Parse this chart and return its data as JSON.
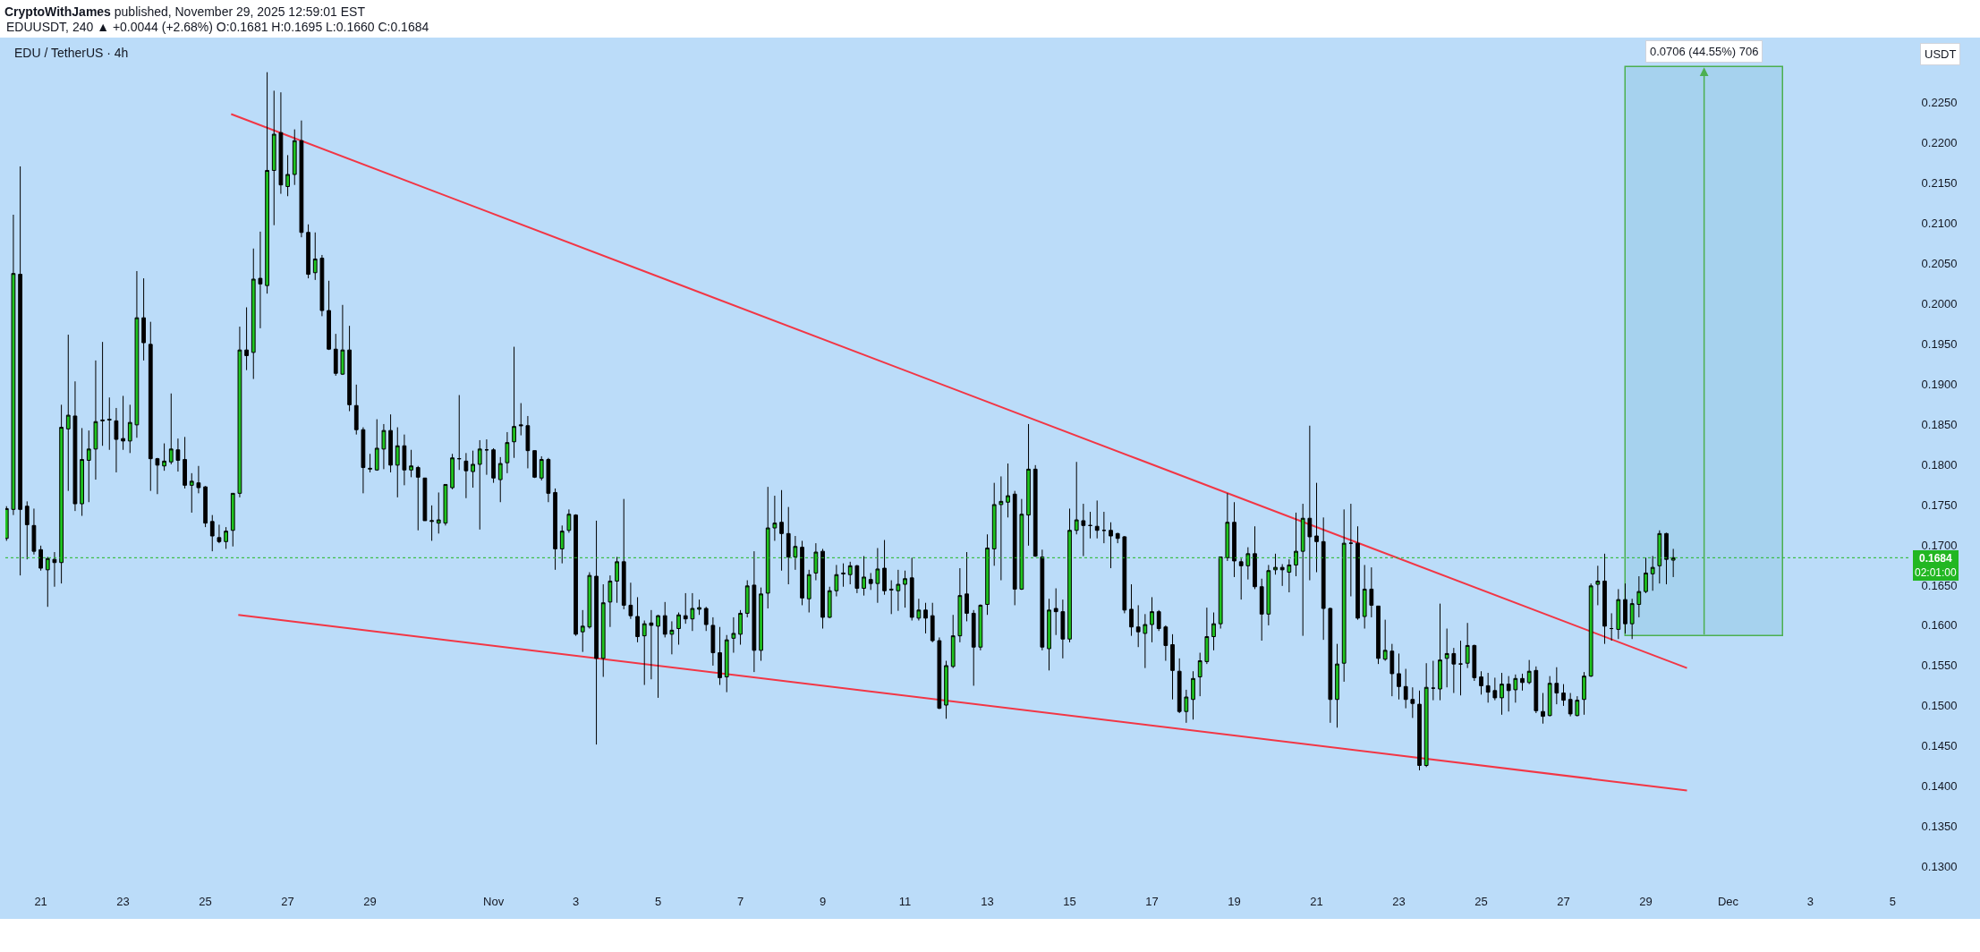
{
  "chart_data": {
    "type": "candlestick",
    "title": "CryptoWithJames published, November 29, 2025 12:59:01 EST",
    "subtitle": "EDUUSDT, 240 ▲ +0.0044 (+2.68%) O:0.1681 H:0.1695 L:0.1660 C:0.1684",
    "x": [
      "2025-10-20T04:00",
      "2025-10-20T08:00",
      "2025-10-20T12:00",
      "2025-10-20T16:00",
      "2025-10-20T20:00",
      "2025-10-21T00:00",
      "2025-10-21T04:00",
      "2025-10-21T08:00",
      "2025-10-21T12:00",
      "2025-10-21T16:00",
      "2025-10-21T20:00",
      "2025-10-22T00:00",
      "2025-10-22T04:00",
      "2025-10-22T08:00",
      "2025-10-22T12:00",
      "2025-10-22T16:00",
      "2025-10-22T20:00",
      "2025-10-23T00:00",
      "2025-10-23T04:00",
      "2025-10-23T08:00",
      "2025-10-23T12:00",
      "2025-10-23T16:00",
      "2025-10-23T20:00",
      "2025-10-24T00:00",
      "2025-10-24T04:00",
      "2025-10-24T08:00",
      "2025-10-24T12:00",
      "2025-10-24T16:00",
      "2025-10-24T20:00",
      "2025-10-25T00:00",
      "2025-10-25T04:00",
      "2025-10-25T08:00",
      "2025-10-25T12:00",
      "2025-10-25T16:00",
      "2025-10-25T20:00",
      "2025-10-26T00:00",
      "2025-10-26T04:00",
      "2025-10-26T08:00",
      "2025-10-26T12:00",
      "2025-10-26T16:00",
      "2025-10-26T20:00",
      "2025-10-27T00:00",
      "2025-10-27T04:00",
      "2025-10-27T08:00",
      "2025-10-27T12:00",
      "2025-10-27T16:00",
      "2025-10-27T20:00",
      "2025-10-28T00:00",
      "2025-10-28T04:00",
      "2025-10-28T08:00",
      "2025-10-28T12:00",
      "2025-10-28T16:00",
      "2025-10-28T20:00",
      "2025-10-29T00:00",
      "2025-10-29T04:00",
      "2025-10-29T08:00",
      "2025-10-29T12:00",
      "2025-10-29T16:00",
      "2025-10-29T20:00",
      "2025-10-30T00:00",
      "2025-10-30T04:00",
      "2025-10-30T08:00",
      "2025-10-30T12:00",
      "2025-10-30T16:00",
      "2025-10-30T20:00",
      "2025-10-31T00:00",
      "2025-10-31T04:00",
      "2025-10-31T08:00",
      "2025-10-31T12:00",
      "2025-10-31T16:00",
      "2025-10-31T20:00",
      "2025-11-01T00:00",
      "2025-11-01T04:00",
      "2025-11-01T08:00",
      "2025-11-01T12:00",
      "2025-11-01T16:00",
      "2025-11-01T20:00",
      "2025-11-02T00:00",
      "2025-11-02T04:00",
      "2025-11-02T08:00",
      "2025-11-02T12:00",
      "2025-11-02T16:00",
      "2025-11-02T20:00",
      "2025-11-03T00:00",
      "2025-11-03T04:00",
      "2025-11-03T08:00",
      "2025-11-03T12:00",
      "2025-11-03T16:00",
      "2025-11-03T20:00",
      "2025-11-04T00:00",
      "2025-11-04T04:00",
      "2025-11-04T08:00",
      "2025-11-04T12:00",
      "2025-11-04T16:00",
      "2025-11-04T20:00",
      "2025-11-05T00:00",
      "2025-11-05T04:00",
      "2025-11-05T08:00",
      "2025-11-05T12:00",
      "2025-11-05T16:00",
      "2025-11-05T20:00",
      "2025-11-06T00:00",
      "2025-11-06T04:00",
      "2025-11-06T08:00",
      "2025-11-06T12:00",
      "2025-11-06T16:00",
      "2025-11-06T20:00",
      "2025-11-07T00:00",
      "2025-11-07T04:00",
      "2025-11-07T08:00",
      "2025-11-07T12:00",
      "2025-11-07T16:00",
      "2025-11-07T20:00",
      "2025-11-08T00:00",
      "2025-11-08T04:00",
      "2025-11-08T08:00",
      "2025-11-08T12:00",
      "2025-11-08T16:00",
      "2025-11-08T20:00",
      "2025-11-09T00:00",
      "2025-11-09T04:00",
      "2025-11-09T08:00",
      "2025-11-09T12:00",
      "2025-11-09T16:00",
      "2025-11-09T20:00",
      "2025-11-10T00:00",
      "2025-11-10T04:00",
      "2025-11-10T08:00",
      "2025-11-10T12:00",
      "2025-11-10T16:00",
      "2025-11-10T20:00",
      "2025-11-11T00:00",
      "2025-11-11T04:00",
      "2025-11-11T08:00",
      "2025-11-11T12:00",
      "2025-11-11T16:00",
      "2025-11-11T20:00",
      "2025-11-12T00:00",
      "2025-11-12T04:00",
      "2025-11-12T08:00",
      "2025-11-12T12:00",
      "2025-11-12T16:00",
      "2025-11-12T20:00",
      "2025-11-13T00:00",
      "2025-11-13T04:00",
      "2025-11-13T08:00",
      "2025-11-13T12:00",
      "2025-11-13T16:00",
      "2025-11-13T20:00",
      "2025-11-14T00:00",
      "2025-11-14T04:00",
      "2025-11-14T08:00",
      "2025-11-14T12:00",
      "2025-11-14T16:00",
      "2025-11-14T20:00",
      "2025-11-15T00:00",
      "2025-11-15T04:00",
      "2025-11-15T08:00",
      "2025-11-15T12:00",
      "2025-11-15T16:00",
      "2025-11-15T20:00",
      "2025-11-16T00:00",
      "2025-11-16T04:00",
      "2025-11-16T08:00",
      "2025-11-16T12:00",
      "2025-11-16T16:00",
      "2025-11-16T20:00",
      "2025-11-17T00:00",
      "2025-11-17T04:00",
      "2025-11-17T08:00",
      "2025-11-17T12:00",
      "2025-11-17T16:00",
      "2025-11-17T20:00",
      "2025-11-18T00:00",
      "2025-11-18T04:00",
      "2025-11-18T08:00",
      "2025-11-18T12:00",
      "2025-11-18T16:00",
      "2025-11-18T20:00",
      "2025-11-19T00:00",
      "2025-11-19T04:00",
      "2025-11-19T08:00",
      "2025-11-19T12:00",
      "2025-11-19T16:00",
      "2025-11-19T20:00",
      "2025-11-20T00:00",
      "2025-11-20T04:00",
      "2025-11-20T08:00",
      "2025-11-20T12:00",
      "2025-11-20T16:00",
      "2025-11-20T20:00",
      "2025-11-21T00:00",
      "2025-11-21T04:00",
      "2025-11-21T08:00",
      "2025-11-21T12:00",
      "2025-11-21T16:00",
      "2025-11-21T20:00",
      "2025-11-22T00:00",
      "2025-11-22T04:00",
      "2025-11-22T08:00",
      "2025-11-22T12:00",
      "2025-11-22T16:00",
      "2025-11-22T20:00",
      "2025-11-23T00:00",
      "2025-11-23T04:00",
      "2025-11-23T08:00",
      "2025-11-23T12:00",
      "2025-11-23T16:00",
      "2025-11-23T20:00",
      "2025-11-24T00:00",
      "2025-11-24T04:00",
      "2025-11-24T08:00",
      "2025-11-24T12:00",
      "2025-11-24T16:00",
      "2025-11-24T20:00",
      "2025-11-25T00:00",
      "2025-11-25T04:00",
      "2025-11-25T08:00",
      "2025-11-25T12:00",
      "2025-11-25T16:00",
      "2025-11-25T20:00",
      "2025-11-26T00:00",
      "2025-11-26T04:00",
      "2025-11-26T08:00",
      "2025-11-26T12:00",
      "2025-11-26T16:00",
      "2025-11-26T20:00",
      "2025-11-27T00:00",
      "2025-11-27T04:00",
      "2025-11-27T08:00",
      "2025-11-27T12:00",
      "2025-11-27T16:00",
      "2025-11-27T20:00",
      "2025-11-28T00:00",
      "2025-11-28T04:00",
      "2025-11-28T08:00",
      "2025-11-28T12:00",
      "2025-11-28T16:00",
      "2025-11-28T20:00",
      "2025-11-29T00:00",
      "2025-11-29T04:00",
      "2025-11-29T08:00",
      "2025-11-29T12:00",
      "2025-11-29T16:00"
    ],
    "ohlc": [
      [
        0.1708,
        0.1748,
        0.1705,
        0.1745
      ],
      [
        0.1744,
        0.211,
        0.1737,
        0.2037
      ],
      [
        0.2036,
        0.217,
        0.1662,
        0.1744
      ],
      [
        0.1748,
        0.1754,
        0.1682,
        0.1725
      ],
      [
        0.1724,
        0.1745,
        0.1688,
        0.1692
      ],
      [
        0.1694,
        0.1699,
        0.1668,
        0.1671
      ],
      [
        0.1669,
        0.1685,
        0.1623,
        0.1683
      ],
      [
        0.1682,
        0.1691,
        0.1648,
        0.1678
      ],
      [
        0.1678,
        0.1874,
        0.1652,
        0.1846
      ],
      [
        0.1844,
        0.1961,
        0.1767,
        0.1861
      ],
      [
        0.186,
        0.1903,
        0.1742,
        0.1751
      ],
      [
        0.1751,
        0.1845,
        0.1736,
        0.1806
      ],
      [
        0.1805,
        0.1842,
        0.1753,
        0.1819
      ],
      [
        0.1819,
        0.1929,
        0.1781,
        0.1853
      ],
      [
        0.1854,
        0.1952,
        0.1823,
        0.1855
      ],
      [
        0.1855,
        0.1883,
        0.1818,
        0.1856
      ],
      [
        0.1854,
        0.187,
        0.179,
        0.1831
      ],
      [
        0.1832,
        0.1885,
        0.1818,
        0.1829
      ],
      [
        0.1829,
        0.1874,
        0.1814,
        0.1852
      ],
      [
        0.1849,
        0.204,
        0.1833,
        0.1982
      ],
      [
        0.1982,
        0.2031,
        0.1929,
        0.1951
      ],
      [
        0.1949,
        0.1977,
        0.1767,
        0.1807
      ],
      [
        0.1807,
        0.1808,
        0.1763,
        0.1799
      ],
      [
        0.1798,
        0.1826,
        0.1792,
        0.1804
      ],
      [
        0.1803,
        0.1888,
        0.18,
        0.1819
      ],
      [
        0.1818,
        0.1832,
        0.1791,
        0.1805
      ],
      [
        0.1806,
        0.1834,
        0.177,
        0.1774
      ],
      [
        0.1774,
        0.1789,
        0.174,
        0.1779
      ],
      [
        0.1777,
        0.1798,
        0.1764,
        0.1771
      ],
      [
        0.1772,
        0.1773,
        0.1722,
        0.1727
      ],
      [
        0.1729,
        0.1737,
        0.1692,
        0.1711
      ],
      [
        0.1709,
        0.1725,
        0.1702,
        0.1704
      ],
      [
        0.1704,
        0.1722,
        0.1695,
        0.1717
      ],
      [
        0.1718,
        0.1764,
        0.1698,
        0.1764
      ],
      [
        0.1764,
        0.1971,
        0.1759,
        0.1942
      ],
      [
        0.1942,
        0.1995,
        0.1917,
        0.1935
      ],
      [
        0.1939,
        0.2068,
        0.1906,
        0.203
      ],
      [
        0.2031,
        0.2089,
        0.1969,
        0.2024
      ],
      [
        0.2022,
        0.2287,
        0.2012,
        0.2165
      ],
      [
        0.2165,
        0.2264,
        0.2097,
        0.221
      ],
      [
        0.2212,
        0.2262,
        0.2136,
        0.2147
      ],
      [
        0.2145,
        0.2184,
        0.2133,
        0.216
      ],
      [
        0.216,
        0.2216,
        0.2147,
        0.2202
      ],
      [
        0.2202,
        0.2227,
        0.2082,
        0.2088
      ],
      [
        0.2088,
        0.2098,
        0.2031,
        0.2036
      ],
      [
        0.2038,
        0.2088,
        0.2029,
        0.2055
      ],
      [
        0.2056,
        0.206,
        0.1984,
        0.1991
      ],
      [
        0.1991,
        0.2028,
        0.1942,
        0.1943
      ],
      [
        0.1943,
        0.1962,
        0.191,
        0.1913
      ],
      [
        0.1912,
        0.1998,
        0.1911,
        0.1942
      ],
      [
        0.1942,
        0.1972,
        0.1866,
        0.1874
      ],
      [
        0.1873,
        0.1899,
        0.1837,
        0.1843
      ],
      [
        0.1843,
        0.1846,
        0.1764,
        0.1796
      ],
      [
        0.1794,
        0.1813,
        0.179,
        0.1795
      ],
      [
        0.1793,
        0.1856,
        0.1792,
        0.182
      ],
      [
        0.1819,
        0.185,
        0.1794,
        0.1842
      ],
      [
        0.1842,
        0.1862,
        0.179,
        0.1799
      ],
      [
        0.1799,
        0.1846,
        0.1759,
        0.1823
      ],
      [
        0.1823,
        0.1837,
        0.1774,
        0.1793
      ],
      [
        0.1793,
        0.1818,
        0.1784,
        0.1798
      ],
      [
        0.1796,
        0.1798,
        0.1718,
        0.1784
      ],
      [
        0.1783,
        0.1783,
        0.173,
        0.173
      ],
      [
        0.1729,
        0.1749,
        0.1705,
        0.173
      ],
      [
        0.1727,
        0.1765,
        0.1714,
        0.1731
      ],
      [
        0.1727,
        0.1775,
        0.1724,
        0.1775
      ],
      [
        0.1771,
        0.1813,
        0.1769,
        0.1808
      ],
      [
        0.1807,
        0.1886,
        0.1793,
        0.1807
      ],
      [
        0.1804,
        0.1814,
        0.1758,
        0.1792
      ],
      [
        0.1791,
        0.1817,
        0.1771,
        0.18
      ],
      [
        0.18,
        0.183,
        0.1719,
        0.1819
      ],
      [
        0.1818,
        0.1831,
        0.1787,
        0.1818
      ],
      [
        0.1818,
        0.182,
        0.1777,
        0.1783
      ],
      [
        0.1781,
        0.1809,
        0.1753,
        0.1801
      ],
      [
        0.1802,
        0.184,
        0.1789,
        0.1827
      ],
      [
        0.1828,
        0.1946,
        0.1808,
        0.1847
      ],
      [
        0.1849,
        0.1876,
        0.1836,
        0.1848
      ],
      [
        0.1848,
        0.186,
        0.1795,
        0.1817
      ],
      [
        0.1817,
        0.1817,
        0.1783,
        0.1784
      ],
      [
        0.1783,
        0.181,
        0.178,
        0.1806
      ],
      [
        0.1806,
        0.1808,
        0.1753,
        0.1764
      ],
      [
        0.1765,
        0.177,
        0.1669,
        0.1695
      ],
      [
        0.1695,
        0.1724,
        0.1677,
        0.1717
      ],
      [
        0.1718,
        0.1744,
        0.1715,
        0.1738
      ],
      [
        0.1737,
        0.1738,
        0.1587,
        0.1589
      ],
      [
        0.1592,
        0.1619,
        0.1567,
        0.1599
      ],
      [
        0.1598,
        0.1666,
        0.1596,
        0.1662
      ],
      [
        0.1661,
        0.173,
        0.1452,
        0.1559
      ],
      [
        0.1559,
        0.1651,
        0.1536,
        0.1628
      ],
      [
        0.1629,
        0.1662,
        0.1598,
        0.1655
      ],
      [
        0.1655,
        0.1685,
        0.1628,
        0.1679
      ],
      [
        0.1679,
        0.1757,
        0.162,
        0.1625
      ],
      [
        0.1625,
        0.1653,
        0.1608,
        0.1612
      ],
      [
        0.1611,
        0.1635,
        0.1579,
        0.1586
      ],
      [
        0.1587,
        0.1606,
        0.1526,
        0.1602
      ],
      [
        0.1603,
        0.1619,
        0.1533,
        0.16
      ],
      [
        0.1599,
        0.1613,
        0.151,
        0.1612
      ],
      [
        0.1612,
        0.1629,
        0.1585,
        0.1589
      ],
      [
        0.1589,
        0.1605,
        0.1564,
        0.1594
      ],
      [
        0.1596,
        0.1616,
        0.1576,
        0.1613
      ],
      [
        0.1612,
        0.164,
        0.1602,
        0.1608
      ],
      [
        0.1608,
        0.164,
        0.1593,
        0.1621
      ],
      [
        0.162,
        0.1632,
        0.1613,
        0.1622
      ],
      [
        0.1621,
        0.1623,
        0.1593,
        0.1601
      ],
      [
        0.16,
        0.161,
        0.155,
        0.1566
      ],
      [
        0.1566,
        0.1598,
        0.1526,
        0.1535
      ],
      [
        0.1536,
        0.1588,
        0.1517,
        0.1582
      ],
      [
        0.1584,
        0.161,
        0.1566,
        0.159
      ],
      [
        0.1589,
        0.1619,
        0.1576,
        0.1615
      ],
      [
        0.1615,
        0.1656,
        0.161,
        0.1649
      ],
      [
        0.165,
        0.1692,
        0.1542,
        0.1569
      ],
      [
        0.1569,
        0.1647,
        0.1556,
        0.1639
      ],
      [
        0.164,
        0.1772,
        0.1621,
        0.1721
      ],
      [
        0.1721,
        0.1761,
        0.1705,
        0.1727
      ],
      [
        0.1728,
        0.1768,
        0.1668,
        0.1714
      ],
      [
        0.1714,
        0.1747,
        0.1651,
        0.1685
      ],
      [
        0.1685,
        0.1711,
        0.1669,
        0.1698
      ],
      [
        0.1697,
        0.1705,
        0.1625,
        0.1634
      ],
      [
        0.1633,
        0.1669,
        0.1616,
        0.1663
      ],
      [
        0.1665,
        0.1702,
        0.1656,
        0.1691
      ],
      [
        0.1692,
        0.1695,
        0.1596,
        0.161
      ],
      [
        0.161,
        0.1648,
        0.1609,
        0.1643
      ],
      [
        0.1643,
        0.1675,
        0.1636,
        0.1663
      ],
      [
        0.1665,
        0.1677,
        0.1648,
        0.1664
      ],
      [
        0.1663,
        0.1679,
        0.1651,
        0.1674
      ],
      [
        0.1674,
        0.1675,
        0.164,
        0.1646
      ],
      [
        0.1646,
        0.1686,
        0.1637,
        0.166
      ],
      [
        0.1657,
        0.1665,
        0.1644,
        0.1652
      ],
      [
        0.1652,
        0.1696,
        0.1628,
        0.167
      ],
      [
        0.1671,
        0.1706,
        0.1638,
        0.1643
      ],
      [
        0.1645,
        0.1656,
        0.1614,
        0.1644
      ],
      [
        0.1643,
        0.1669,
        0.1618,
        0.1651
      ],
      [
        0.1651,
        0.1668,
        0.1622,
        0.1658
      ],
      [
        0.1659,
        0.1684,
        0.1606,
        0.161
      ],
      [
        0.1609,
        0.1633,
        0.1606,
        0.1619
      ],
      [
        0.1619,
        0.1628,
        0.159,
        0.1609
      ],
      [
        0.1612,
        0.1628,
        0.1579,
        0.1581
      ],
      [
        0.1581,
        0.1585,
        0.1496,
        0.1497
      ],
      [
        0.1501,
        0.1556,
        0.1484,
        0.155
      ],
      [
        0.1549,
        0.1613,
        0.1547,
        0.1587
      ],
      [
        0.1587,
        0.1671,
        0.1579,
        0.1637
      ],
      [
        0.1639,
        0.1691,
        0.1605,
        0.1615
      ],
      [
        0.1615,
        0.1619,
        0.1525,
        0.1573
      ],
      [
        0.1573,
        0.1626,
        0.1569,
        0.1625
      ],
      [
        0.1626,
        0.1713,
        0.1613,
        0.1696
      ],
      [
        0.1695,
        0.1777,
        0.1674,
        0.175
      ],
      [
        0.175,
        0.1785,
        0.1656,
        0.1754
      ],
      [
        0.1753,
        0.1801,
        0.1734,
        0.1761
      ],
      [
        0.1763,
        0.1767,
        0.1625,
        0.1645
      ],
      [
        0.1645,
        0.1757,
        0.1644,
        0.1738
      ],
      [
        0.1737,
        0.185,
        0.1699,
        0.1794
      ],
      [
        0.1794,
        0.1799,
        0.1685,
        0.1686
      ],
      [
        0.1685,
        0.1694,
        0.1569,
        0.1573
      ],
      [
        0.1571,
        0.1633,
        0.1544,
        0.1619
      ],
      [
        0.1621,
        0.1646,
        0.1588,
        0.1617
      ],
      [
        0.1617,
        0.1632,
        0.1559,
        0.1583
      ],
      [
        0.1583,
        0.1745,
        0.1579,
        0.1718
      ],
      [
        0.1718,
        0.1803,
        0.1713,
        0.1731
      ],
      [
        0.173,
        0.1751,
        0.1686,
        0.1724
      ],
      [
        0.1724,
        0.1741,
        0.1708,
        0.1724
      ],
      [
        0.1723,
        0.1755,
        0.1708,
        0.1718
      ],
      [
        0.1718,
        0.1741,
        0.1702,
        0.1718
      ],
      [
        0.1718,
        0.1728,
        0.1671,
        0.1711
      ],
      [
        0.1714,
        0.1715,
        0.1702,
        0.1708
      ],
      [
        0.171,
        0.1711,
        0.1615,
        0.1619
      ],
      [
        0.162,
        0.1651,
        0.1587,
        0.1598
      ],
      [
        0.1598,
        0.1625,
        0.1573,
        0.1592
      ],
      [
        0.159,
        0.1614,
        0.1547,
        0.1601
      ],
      [
        0.1601,
        0.1635,
        0.1579,
        0.1617
      ],
      [
        0.1617,
        0.1619,
        0.1593,
        0.1596
      ],
      [
        0.1598,
        0.16,
        0.1556,
        0.1575
      ],
      [
        0.1576,
        0.1589,
        0.1508,
        0.1544
      ],
      [
        0.1543,
        0.1559,
        0.1491,
        0.1493
      ],
      [
        0.1493,
        0.152,
        0.1479,
        0.1511
      ],
      [
        0.1508,
        0.1543,
        0.1483,
        0.1534
      ],
      [
        0.1536,
        0.1566,
        0.1512,
        0.1556
      ],
      [
        0.1555,
        0.1622,
        0.1552,
        0.1586
      ],
      [
        0.1586,
        0.1616,
        0.1569,
        0.1602
      ],
      [
        0.1602,
        0.1685,
        0.1596,
        0.1685
      ],
      [
        0.1684,
        0.1764,
        0.168,
        0.1728
      ],
      [
        0.1728,
        0.1753,
        0.166,
        0.168
      ],
      [
        0.1679,
        0.1683,
        0.1632,
        0.1674
      ],
      [
        0.1674,
        0.1697,
        0.1657,
        0.1689
      ],
      [
        0.1689,
        0.1723,
        0.1645,
        0.1648
      ],
      [
        0.1648,
        0.1658,
        0.1581,
        0.1614
      ],
      [
        0.1614,
        0.1675,
        0.16,
        0.1668
      ],
      [
        0.1669,
        0.1689,
        0.1663,
        0.1672
      ],
      [
        0.1672,
        0.1676,
        0.1649,
        0.1669
      ],
      [
        0.1666,
        0.1682,
        0.1641,
        0.1675
      ],
      [
        0.1675,
        0.174,
        0.1661,
        0.1692
      ],
      [
        0.1692,
        0.1751,
        0.1587,
        0.1733
      ],
      [
        0.1733,
        0.1848,
        0.1656,
        0.171
      ],
      [
        0.1711,
        0.1777,
        0.1666,
        0.1704
      ],
      [
        0.1704,
        0.1734,
        0.1582,
        0.1621
      ],
      [
        0.1621,
        0.1622,
        0.1479,
        0.1508
      ],
      [
        0.1508,
        0.1577,
        0.1473,
        0.1552
      ],
      [
        0.1553,
        0.1744,
        0.153,
        0.1702
      ],
      [
        0.1702,
        0.1751,
        0.1636,
        0.1702
      ],
      [
        0.1702,
        0.1723,
        0.1607,
        0.1609
      ],
      [
        0.1611,
        0.1675,
        0.1596,
        0.1645
      ],
      [
        0.1645,
        0.1672,
        0.161,
        0.1625
      ],
      [
        0.1624,
        0.1624,
        0.1552,
        0.1559
      ],
      [
        0.1558,
        0.1607,
        0.1556,
        0.1569
      ],
      [
        0.1568,
        0.1577,
        0.1512,
        0.154
      ],
      [
        0.154,
        0.1565,
        0.1508,
        0.1524
      ],
      [
        0.1524,
        0.1546,
        0.1497,
        0.1508
      ],
      [
        0.1508,
        0.1523,
        0.1485,
        0.1503
      ],
      [
        0.1502,
        0.1519,
        0.142,
        0.1426
      ],
      [
        0.1426,
        0.1553,
        0.1424,
        0.1523
      ],
      [
        0.1522,
        0.1556,
        0.1507,
        0.1522
      ],
      [
        0.1521,
        0.1627,
        0.1507,
        0.1557
      ],
      [
        0.1559,
        0.1596,
        0.1523,
        0.1565
      ],
      [
        0.1565,
        0.1572,
        0.1516,
        0.1552
      ],
      [
        0.1552,
        0.1581,
        0.1513,
        0.1552
      ],
      [
        0.1553,
        0.1603,
        0.1547,
        0.1575
      ],
      [
        0.1575,
        0.1576,
        0.1531,
        0.1535
      ],
      [
        0.1536,
        0.1543,
        0.1514,
        0.1525
      ],
      [
        0.1525,
        0.1541,
        0.1504,
        0.1517
      ],
      [
        0.1519,
        0.1535,
        0.1507,
        0.151
      ],
      [
        0.151,
        0.1541,
        0.1489,
        0.1527
      ],
      [
        0.1527,
        0.1537,
        0.1493,
        0.1519
      ],
      [
        0.152,
        0.1539,
        0.1504,
        0.1534
      ],
      [
        0.1534,
        0.154,
        0.1519,
        0.1529
      ],
      [
        0.1529,
        0.1557,
        0.1527,
        0.1543
      ],
      [
        0.1544,
        0.1549,
        0.1491,
        0.1494
      ],
      [
        0.1493,
        0.1516,
        0.1478,
        0.1487
      ],
      [
        0.1488,
        0.1537,
        0.1487,
        0.1528
      ],
      [
        0.1528,
        0.1548,
        0.1502,
        0.1516
      ],
      [
        0.1516,
        0.1527,
        0.15,
        0.1507
      ],
      [
        0.1508,
        0.1516,
        0.1487,
        0.149
      ],
      [
        0.1488,
        0.1512,
        0.1487,
        0.1507
      ],
      [
        0.1508,
        0.1542,
        0.1489,
        0.1537
      ],
      [
        0.1537,
        0.1652,
        0.1536,
        0.1649
      ],
      [
        0.1651,
        0.1674,
        0.1625,
        0.1655
      ],
      [
        0.1655,
        0.1689,
        0.1577,
        0.1599
      ],
      [
        0.1596,
        0.1615,
        0.1581,
        0.1596
      ],
      [
        0.1595,
        0.1645,
        0.1583,
        0.1632
      ],
      [
        0.1632,
        0.1652,
        0.159,
        0.1602
      ],
      [
        0.1602,
        0.1633,
        0.1583,
        0.1627
      ],
      [
        0.1626,
        0.1661,
        0.161,
        0.1642
      ],
      [
        0.1642,
        0.1684,
        0.164,
        0.1665
      ],
      [
        0.1664,
        0.1686,
        0.1643,
        0.1672
      ],
      [
        0.1674,
        0.1718,
        0.1652,
        0.1714
      ],
      [
        0.1714,
        0.1715,
        0.1651,
        0.1682
      ],
      [
        0.1681,
        0.1695,
        0.166,
        0.1684
      ]
    ],
    "series": [
      {
        "type": "bar",
        "x": [
          "2025-11-30T10:00"
        ],
        "base": [
          0.1587
        ],
        "values": [
          0.0706
        ],
        "color": "#a6d2ee"
      },
      {
        "type": "line",
        "x": [
          "2025-10-25T15:00",
          "2025-11-30T00:00"
        ],
        "values": [
          0.2235,
          0.1547
        ],
        "color": "#f23645"
      },
      {
        "type": "line",
        "x": [
          "2025-10-25T19:10",
          "2025-11-30T00:00"
        ],
        "values": [
          0.1613,
          0.1395
        ],
        "color": "#f23645"
      }
    ],
    "xlim": [
      "2025-10-20T03:20",
      "2025-12-05T09:40"
    ],
    "xticks": [
      {
        "value": "2025-10-21",
        "label": "21"
      },
      {
        "value": "2025-10-23",
        "label": "23"
      },
      {
        "value": "2025-10-25",
        "label": "25"
      },
      {
        "value": "2025-10-27",
        "label": "27"
      },
      {
        "value": "2025-10-29",
        "label": "29"
      },
      {
        "value": "2025-11-01",
        "label": "Nov"
      },
      {
        "value": "2025-11-03",
        "label": "3"
      },
      {
        "value": "2025-11-05",
        "label": "5"
      },
      {
        "value": "2025-11-07",
        "label": "7"
      },
      {
        "value": "2025-11-09",
        "label": "9"
      },
      {
        "value": "2025-11-11",
        "label": "11"
      },
      {
        "value": "2025-11-13",
        "label": "13"
      },
      {
        "value": "2025-11-15",
        "label": "15"
      },
      {
        "value": "2025-11-17",
        "label": "17"
      },
      {
        "value": "2025-11-19",
        "label": "19"
      },
      {
        "value": "2025-11-21",
        "label": "21"
      },
      {
        "value": "2025-11-23",
        "label": "23"
      },
      {
        "value": "2025-11-25",
        "label": "25"
      },
      {
        "value": "2025-11-27",
        "label": "27"
      },
      {
        "value": "2025-11-29",
        "label": "29"
      },
      {
        "value": "2025-12-01",
        "label": "Dec"
      },
      {
        "value": "2025-12-03",
        "label": "3"
      },
      {
        "value": "2025-12-05",
        "label": "5"
      }
    ],
    "ylim": [
      0.1271,
      0.233
    ],
    "yticks": [
      {
        "value": 0.13,
        "label": "0.1300"
      },
      {
        "value": 0.135,
        "label": "0.1350"
      },
      {
        "value": 0.14,
        "label": "0.1400"
      },
      {
        "value": 0.145,
        "label": "0.1450"
      },
      {
        "value": 0.15,
        "label": "0.1500"
      },
      {
        "value": 0.155,
        "label": "0.1550"
      },
      {
        "value": 0.16,
        "label": "0.1600"
      },
      {
        "value": 0.165,
        "label": "0.1650"
      },
      {
        "value": 0.17,
        "label": "0.1700"
      },
      {
        "value": 0.175,
        "label": "0.1750"
      },
      {
        "value": 0.18,
        "label": "0.1800"
      },
      {
        "value": 0.185,
        "label": "0.1850"
      },
      {
        "value": 0.19,
        "label": "0.1900"
      },
      {
        "value": 0.195,
        "label": "0.1950"
      },
      {
        "value": 0.2,
        "label": "0.2000"
      },
      {
        "value": 0.205,
        "label": "0.2050"
      },
      {
        "value": 0.21,
        "label": "0.2100"
      },
      {
        "value": 0.215,
        "label": "0.2150"
      },
      {
        "value": 0.22,
        "label": "0.2200"
      },
      {
        "value": 0.225,
        "label": "0.2250"
      }
    ],
    "ref_lines": [
      {
        "axis": "y",
        "value": 0.1684,
        "label": "0.1684\n02:01:00",
        "color": "#22b722",
        "line_style": "dotted"
      }
    ],
    "annotations": [
      "EDU / TetherUS · 4h",
      "USDT",
      {
        "text": "0.0706 (44.55%) 706",
        "x": "2025-11-30T10:00",
        "y": 0.2293
      }
    ]
  }
}
